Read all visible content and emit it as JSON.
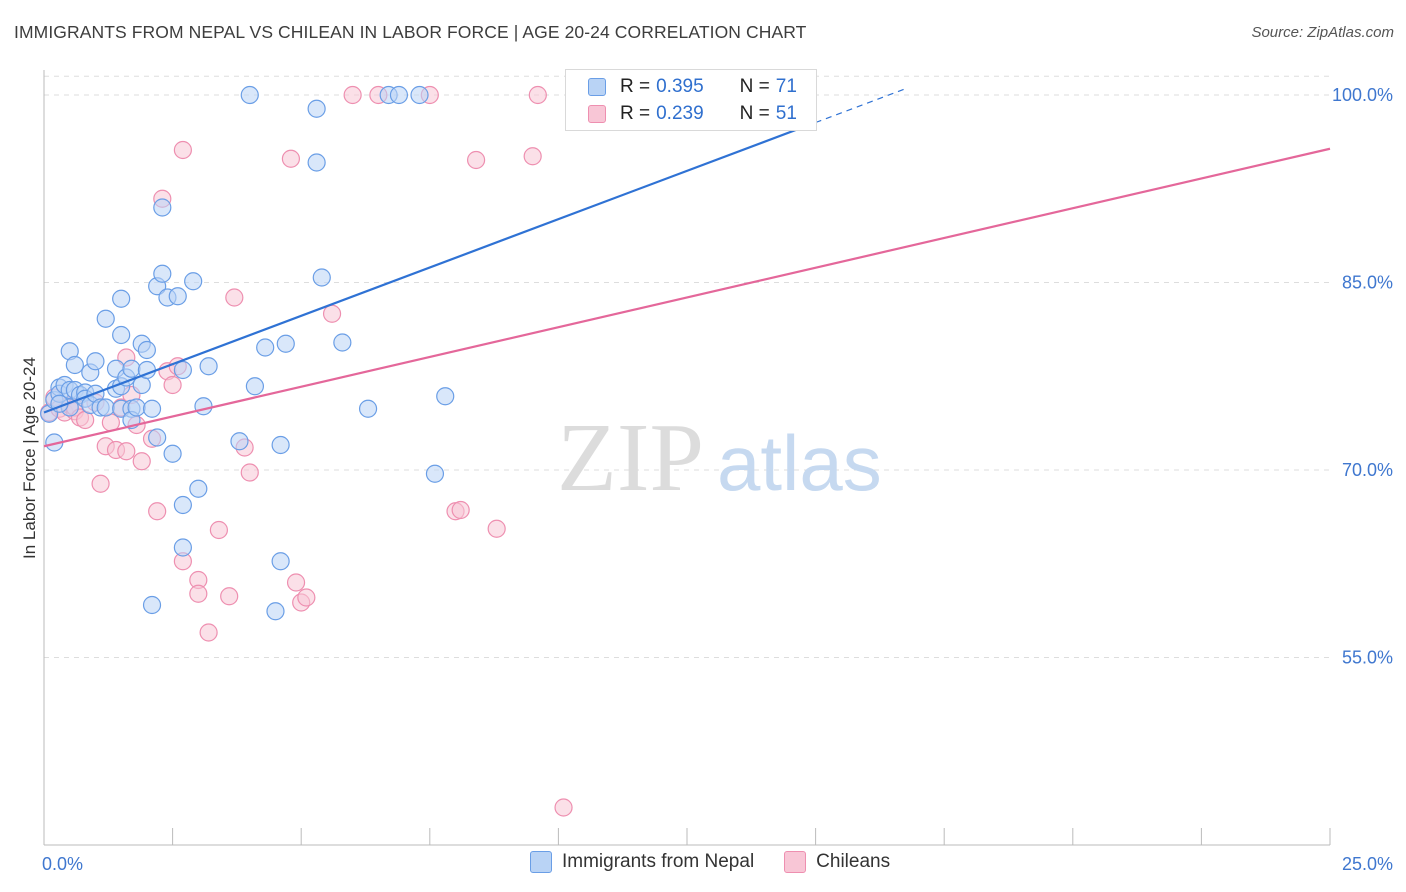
{
  "header": {
    "title": "IMMIGRANTS FROM NEPAL VS CHILEAN IN LABOR FORCE | AGE 20-24 CORRELATION CHART",
    "source": "Source: ZipAtlas.com"
  },
  "legend": {
    "nepal": {
      "r_label": "R =",
      "r_value": "0.395",
      "n_label": "N =",
      "n_value": "71"
    },
    "chilean": {
      "r_label": "R =",
      "r_value": "0.239",
      "n_label": "N =",
      "n_value": "51"
    }
  },
  "bottom_legend": {
    "nepal": "Immigrants from Nepal",
    "chilean": "Chileans"
  },
  "watermark": {
    "zip": "ZIP",
    "atlas": "atlas"
  },
  "colors": {
    "nepal_fill": "#b9d3f5",
    "nepal_stroke": "#6a9ee6",
    "nepal_line": "#2f72d4",
    "chilean_fill": "#f8c6d6",
    "chilean_stroke": "#ee8fb0",
    "chilean_line": "#e4679a",
    "axis_label": "#3f77cf",
    "grid": "#dddddd"
  },
  "chart_data": {
    "type": "scatter",
    "title": "IMMIGRANTS FROM NEPAL VS CHILEAN IN LABOR FORCE | AGE 20-24 CORRELATION CHART",
    "xlabel": "",
    "ylabel": "In Labor Force | Age 20-24",
    "xlim": [
      0,
      25
    ],
    "ylim": [
      40,
      102
    ],
    "x_tick_labels": [
      "0.0%",
      "25.0%"
    ],
    "y_ticks": [
      55,
      70,
      85,
      100
    ],
    "y_tick_labels": [
      "55.0%",
      "70.0%",
      "85.0%",
      "100.0%"
    ],
    "series": [
      {
        "name": "Immigrants from Nepal",
        "R": 0.395,
        "N": 71,
        "trend": {
          "x0": 0.0,
          "y0": 74.6,
          "x1": 15.0,
          "y1": 97.8,
          "dashed_to_x": 16.8
        },
        "points": [
          [
            0.1,
            74.5
          ],
          [
            0.2,
            75.6
          ],
          [
            0.2,
            72.2
          ],
          [
            0.3,
            76.6
          ],
          [
            0.3,
            76.1
          ],
          [
            0.4,
            76.8
          ],
          [
            0.5,
            75.0
          ],
          [
            0.5,
            76.4
          ],
          [
            0.5,
            79.5
          ],
          [
            0.6,
            78.4
          ],
          [
            0.6,
            76.4
          ],
          [
            0.7,
            76.0
          ],
          [
            0.8,
            76.2
          ],
          [
            0.8,
            75.7
          ],
          [
            0.9,
            77.8
          ],
          [
            0.9,
            75.2
          ],
          [
            1.0,
            78.7
          ],
          [
            1.0,
            76.1
          ],
          [
            1.1,
            75.0
          ],
          [
            1.2,
            75.0
          ],
          [
            1.2,
            82.1
          ],
          [
            1.4,
            76.5
          ],
          [
            1.4,
            78.1
          ],
          [
            1.5,
            76.7
          ],
          [
            1.5,
            74.9
          ],
          [
            1.5,
            83.7
          ],
          [
            1.5,
            80.8
          ],
          [
            1.6,
            77.4
          ],
          [
            1.7,
            74.9
          ],
          [
            1.7,
            74.0
          ],
          [
            1.7,
            78.1
          ],
          [
            1.8,
            75.0
          ],
          [
            1.9,
            76.8
          ],
          [
            1.9,
            80.1
          ],
          [
            2.0,
            78.0
          ],
          [
            2.0,
            79.6
          ],
          [
            2.1,
            74.9
          ],
          [
            2.1,
            59.2
          ],
          [
            2.2,
            72.6
          ],
          [
            2.2,
            84.7
          ],
          [
            2.3,
            85.7
          ],
          [
            2.3,
            91.0
          ],
          [
            2.4,
            83.8
          ],
          [
            2.5,
            71.3
          ],
          [
            2.6,
            83.9
          ],
          [
            2.7,
            63.8
          ],
          [
            2.7,
            67.2
          ],
          [
            2.7,
            78.0
          ],
          [
            2.9,
            85.1
          ],
          [
            3.0,
            68.5
          ],
          [
            3.1,
            75.1
          ],
          [
            3.2,
            78.3
          ],
          [
            3.8,
            72.3
          ],
          [
            4.0,
            100.0
          ],
          [
            4.1,
            76.7
          ],
          [
            4.3,
            79.8
          ],
          [
            4.5,
            58.7
          ],
          [
            4.6,
            72.0
          ],
          [
            4.6,
            62.7
          ],
          [
            4.7,
            80.1
          ],
          [
            5.3,
            94.6
          ],
          [
            5.3,
            98.9
          ],
          [
            5.4,
            85.4
          ],
          [
            5.8,
            80.2
          ],
          [
            6.3,
            74.9
          ],
          [
            6.7,
            100.0
          ],
          [
            6.9,
            100.0
          ],
          [
            7.3,
            100.0
          ],
          [
            7.6,
            69.7
          ],
          [
            7.8,
            75.9
          ],
          [
            0.3,
            75.3
          ]
        ]
      },
      {
        "name": "Chileans",
        "R": 0.239,
        "N": 51,
        "trend": {
          "x0": 0.0,
          "y0": 71.9,
          "x1": 25.0,
          "y1": 95.7
        },
        "points": [
          [
            0.1,
            74.6
          ],
          [
            0.2,
            75.8
          ],
          [
            0.3,
            74.9
          ],
          [
            0.4,
            74.6
          ],
          [
            0.5,
            75.2
          ],
          [
            0.6,
            74.7
          ],
          [
            0.6,
            75.0
          ],
          [
            0.7,
            74.2
          ],
          [
            0.8,
            74.0
          ],
          [
            1.0,
            75.4
          ],
          [
            1.1,
            68.9
          ],
          [
            1.2,
            71.9
          ],
          [
            1.3,
            73.8
          ],
          [
            1.4,
            71.6
          ],
          [
            1.5,
            75.0
          ],
          [
            1.6,
            71.5
          ],
          [
            1.6,
            79.0
          ],
          [
            1.7,
            76.0
          ],
          [
            1.8,
            73.6
          ],
          [
            1.9,
            70.7
          ],
          [
            2.1,
            72.5
          ],
          [
            2.2,
            66.7
          ],
          [
            2.3,
            91.7
          ],
          [
            2.4,
            77.9
          ],
          [
            2.5,
            76.8
          ],
          [
            2.6,
            78.3
          ],
          [
            2.7,
            95.6
          ],
          [
            2.7,
            62.7
          ],
          [
            3.0,
            61.2
          ],
          [
            3.0,
            60.1
          ],
          [
            3.2,
            57.0
          ],
          [
            3.4,
            65.2
          ],
          [
            3.6,
            59.9
          ],
          [
            3.7,
            83.8
          ],
          [
            3.9,
            71.8
          ],
          [
            4.0,
            69.8
          ],
          [
            4.8,
            94.9
          ],
          [
            4.9,
            61.0
          ],
          [
            5.0,
            59.4
          ],
          [
            5.1,
            59.8
          ],
          [
            5.6,
            82.5
          ],
          [
            6.0,
            100.0
          ],
          [
            6.5,
            100.0
          ],
          [
            7.5,
            100.0
          ],
          [
            8.0,
            66.7
          ],
          [
            8.1,
            66.8
          ],
          [
            8.4,
            94.8
          ],
          [
            8.8,
            65.3
          ],
          [
            9.5,
            95.1
          ],
          [
            9.6,
            100.0
          ],
          [
            10.1,
            43.0
          ]
        ]
      }
    ]
  }
}
